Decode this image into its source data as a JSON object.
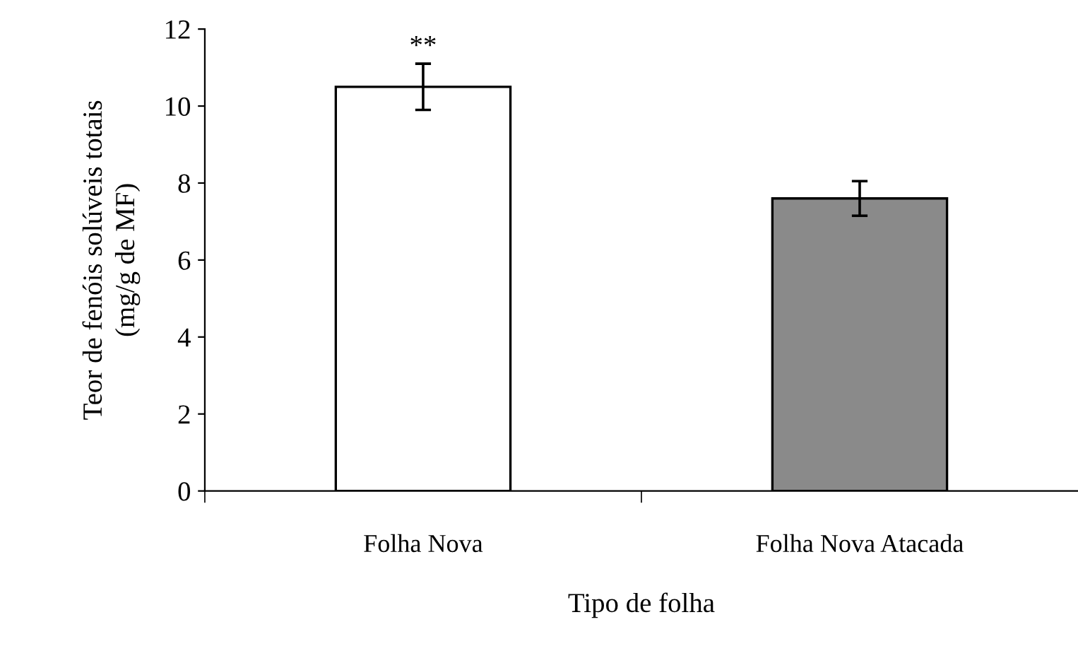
{
  "chart_data": {
    "type": "bar",
    "categories": [
      "Folha Nova",
      "Folha Nova Atacada"
    ],
    "values": [
      10.5,
      7.6
    ],
    "errors": [
      0.6,
      0.45
    ],
    "colors": [
      "#ffffff",
      "#8a8a8a"
    ],
    "xlabel": "Tipo de folha",
    "ylabel": "Teor de fenóis solúveis totais\n(mg/g de MF)",
    "ylim": [
      0,
      12
    ],
    "yticks": [
      0,
      2,
      4,
      6,
      8,
      10,
      12
    ],
    "grid": false,
    "legend": false,
    "annotations": [
      {
        "text": "**",
        "x": "Folha Nova",
        "y": 11.2
      }
    ]
  }
}
